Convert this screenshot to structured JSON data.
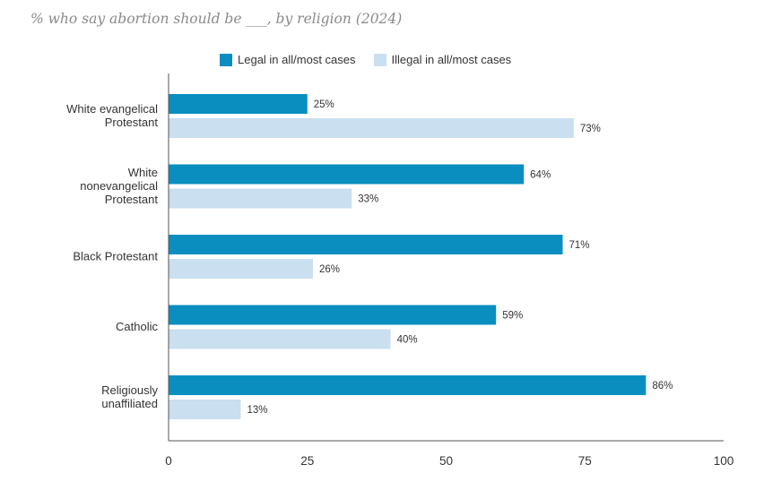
{
  "subtitle": "% who say abortion should be ___, by religion (2024)",
  "colors": {
    "legal": "#0a8ec0",
    "illegal": "#cadff0",
    "axis": "#555555"
  },
  "chart_data": {
    "type": "bar",
    "orientation": "horizontal",
    "categories": [
      [
        "White evangelical",
        "Protestant"
      ],
      [
        "White",
        "nonevangelical",
        "Protestant"
      ],
      [
        "Black Protestant"
      ],
      [
        "Catholic"
      ],
      [
        "Religiously",
        "unaffiliated"
      ]
    ],
    "series": [
      {
        "name": "Legal in all/most cases",
        "values": [
          25,
          64,
          71,
          59,
          86
        ],
        "labels": [
          "25%",
          "64%",
          "71%",
          "59%",
          "86%"
        ]
      },
      {
        "name": "Illegal in all/most cases",
        "values": [
          73,
          33,
          26,
          40,
          13
        ],
        "labels": [
          "73%",
          "33%",
          "26%",
          "40%",
          "13%"
        ]
      }
    ],
    "xlim": [
      0,
      100
    ],
    "xticks": [
      0,
      25,
      50,
      75,
      100
    ],
    "grid": false,
    "legend_position": "top"
  }
}
